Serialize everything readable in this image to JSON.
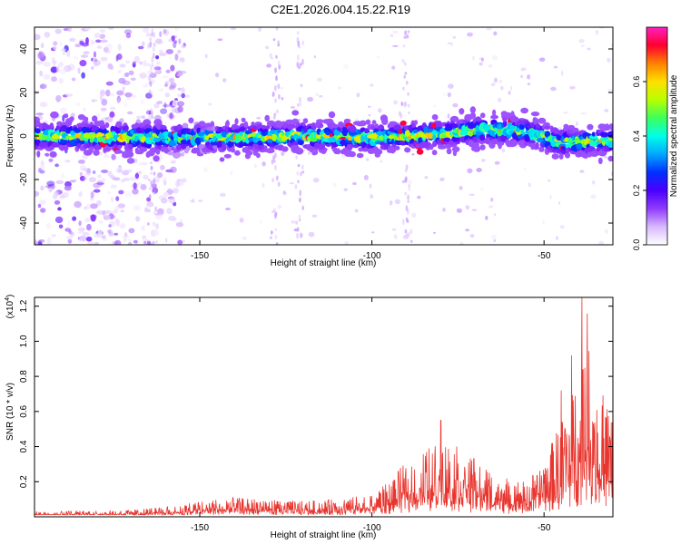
{
  "figure_title": "C2E1.2026.004.15.22.R19",
  "chart_data": [
    {
      "type": "heatmap",
      "title": "C2E1.2026.004.15.22.R19",
      "xlabel": "Height of straight line (km)",
      "ylabel": "Frequency (Hz)",
      "xlim": [
        -198,
        -30
      ],
      "ylim": [
        -50,
        50
      ],
      "x_ticks": [
        -150,
        -100,
        -50
      ],
      "y_ticks": [
        -40,
        -20,
        0,
        20,
        40
      ],
      "signal_center_hz": [
        [
          -198,
          0
        ],
        [
          -150,
          -1
        ],
        [
          -120,
          0
        ],
        [
          -100,
          -1
        ],
        [
          -80,
          1
        ],
        [
          -65,
          3
        ],
        [
          -55,
          2
        ],
        [
          -45,
          -3
        ],
        [
          -30,
          -2
        ]
      ],
      "signal_halfwidth_hz": 4,
      "noise_region_km": [
        -198,
        -160
      ],
      "colorbar": {
        "label": "Normalized spectral amplitude",
        "range": [
          0,
          0.8
        ],
        "ticks": [
          0.0,
          0.2,
          0.4,
          0.6
        ],
        "colormap": [
          "#ffffff",
          "#d8b8ff",
          "#8f3bff",
          "#4a00ff",
          "#0030ff",
          "#00a8ff",
          "#00ffe8",
          "#3cff5a",
          "#b8ff00",
          "#ffe000",
          "#ff8000",
          "#ff0030",
          "#ff20c0"
        ]
      }
    },
    {
      "type": "line",
      "xlabel": "Height of straight line (km)",
      "ylabel": "SNR (10 * v/v)",
      "y_multiplier_label": "(x10",
      "y_multiplier_exp": "4",
      "xlim": [
        -198,
        -30
      ],
      "ylim": [
        0,
        1.25
      ],
      "x_ticks": [
        -150,
        -100,
        -50
      ],
      "y_ticks": [
        0.2,
        0.4,
        0.6,
        0.8,
        1.0,
        1.2
      ],
      "y_tick_labels": [
        "0.2",
        "0.4",
        "0.6",
        "0.8",
        "1.0",
        "1.2"
      ],
      "line_color": "#e8352e",
      "envelope_x": [
        -198,
        -170,
        -160,
        -150,
        -140,
        -130,
        -120,
        -110,
        -100,
        -95,
        -90,
        -85,
        -80,
        -75,
        -70,
        -65,
        -60,
        -55,
        -50,
        -45,
        -40,
        -38,
        -35,
        -30
      ],
      "envelope_y": [
        0.03,
        0.04,
        0.06,
        0.09,
        0.11,
        0.1,
        0.09,
        0.1,
        0.13,
        0.2,
        0.32,
        0.38,
        0.44,
        0.4,
        0.33,
        0.26,
        0.22,
        0.2,
        0.32,
        0.55,
        0.82,
        1.25,
        0.78,
        0.6
      ],
      "peaks": [
        [
          -80,
          0.55
        ],
        [
          -39,
          1.25
        ],
        [
          -45,
          0.72
        ],
        [
          -42,
          0.92
        ]
      ]
    }
  ]
}
